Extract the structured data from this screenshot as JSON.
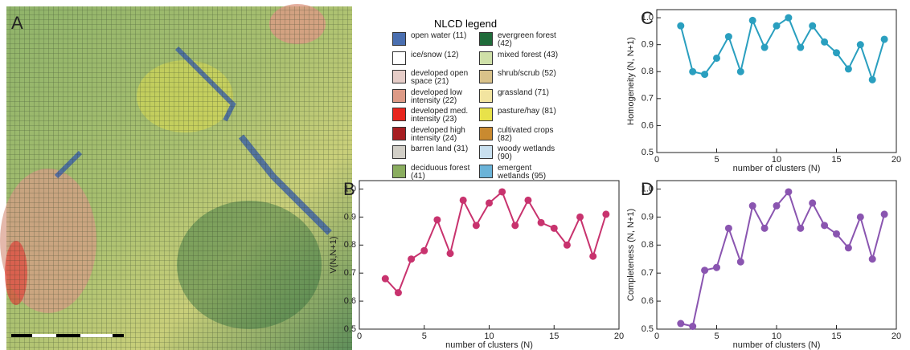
{
  "map": {
    "panel_label": "A"
  },
  "legend": {
    "title": "NLCD legend",
    "items": [
      {
        "label": "open water (11)",
        "color": "#4a6fb0"
      },
      {
        "label": "ice/snow (12)",
        "color": "#ffffff"
      },
      {
        "label": "developed open space (21)",
        "color": "#e6cdc8"
      },
      {
        "label": "developed low intensity (22)",
        "color": "#dd9a86"
      },
      {
        "label": "developed med. intensity (23)",
        "color": "#e8261e"
      },
      {
        "label": "developed high intensity (24)",
        "color": "#a61e22"
      },
      {
        "label": "barren land (31)",
        "color": "#d2cfc7"
      },
      {
        "label": "deciduous forest (41)",
        "color": "#8aad5f"
      },
      {
        "label": "evergreen forest (42)",
        "color": "#1f6b3a"
      },
      {
        "label": "mixed forest (43)",
        "color": "#cfe0a8"
      },
      {
        "label": "shrub/scrub (52)",
        "color": "#d9c28a"
      },
      {
        "label": "grassland (71)",
        "color": "#f2e4a0"
      },
      {
        "label": "pasture/hay (81)",
        "color": "#e8e24a"
      },
      {
        "label": "cultivated crops (82)",
        "color": "#c98a30"
      },
      {
        "label": "woody wetlands (90)",
        "color": "#c8e0f0"
      },
      {
        "label": "emergent wetlands (95)",
        "color": "#6ab3d8"
      }
    ]
  },
  "chart_data": [
    {
      "type": "line",
      "panel_label": "C",
      "xlabel": "number of clusters (N)",
      "ylabel": "Homogeneity (N, N+1)",
      "color": "#2a9fbf",
      "x": [
        2,
        3,
        4,
        5,
        6,
        7,
        8,
        9,
        10,
        11,
        12,
        13,
        14,
        15,
        16,
        17,
        18,
        19
      ],
      "values": [
        0.97,
        0.8,
        0.79,
        0.85,
        0.93,
        0.8,
        0.99,
        0.89,
        0.97,
        1.0,
        0.89,
        0.97,
        0.91,
        0.87,
        0.81,
        0.9,
        0.77,
        0.92
      ],
      "xlim": [
        0,
        20
      ],
      "xticks": [
        0,
        5,
        10,
        15,
        20
      ],
      "ylim": [
        0.5,
        1.03
      ],
      "yticks": [
        0.5,
        0.6,
        0.7,
        0.8,
        0.9,
        {
          "value": 1,
          "label": "1.0"
        }
      ]
    },
    {
      "type": "line",
      "panel_label": "B",
      "xlabel": "number of clusters (N)",
      "ylabel": "V(N,N+1)",
      "color": "#c8336e",
      "x": [
        2,
        3,
        4,
        5,
        6,
        7,
        8,
        9,
        10,
        11,
        12,
        13,
        14,
        15,
        16,
        17,
        18,
        19
      ],
      "values": [
        0.68,
        0.63,
        0.75,
        0.78,
        0.89,
        0.77,
        0.96,
        0.87,
        0.95,
        0.99,
        0.87,
        0.96,
        0.88,
        0.86,
        0.8,
        0.9,
        0.76,
        0.91
      ],
      "xlim": [
        0,
        20
      ],
      "xticks": [
        0,
        5,
        10,
        15,
        20
      ],
      "ylim": [
        0.5,
        1.03
      ],
      "yticks": [
        0.5,
        0.6,
        0.7,
        0.8,
        0.9,
        {
          "value": 1,
          "label": "1.0"
        }
      ]
    },
    {
      "type": "line",
      "panel_label": "D",
      "xlabel": "number of clusters (N)",
      "ylabel": "Completeness  (N, N+1)",
      "color": "#8a55b0",
      "x": [
        2,
        3,
        4,
        5,
        6,
        7,
        8,
        9,
        10,
        11,
        12,
        13,
        14,
        15,
        16,
        17,
        18,
        19
      ],
      "values": [
        0.52,
        0.51,
        0.71,
        0.72,
        0.86,
        0.74,
        0.94,
        0.86,
        0.94,
        0.99,
        0.86,
        0.95,
        0.87,
        0.84,
        0.79,
        0.9,
        0.75,
        0.91
      ],
      "xlim": [
        0,
        20
      ],
      "xticks": [
        0,
        5,
        10,
        15,
        20
      ],
      "ylim": [
        0.5,
        1.03
      ],
      "yticks": [
        0.5,
        0.6,
        0.7,
        0.8,
        0.9,
        {
          "value": 1,
          "label": "1.0"
        }
      ]
    }
  ]
}
